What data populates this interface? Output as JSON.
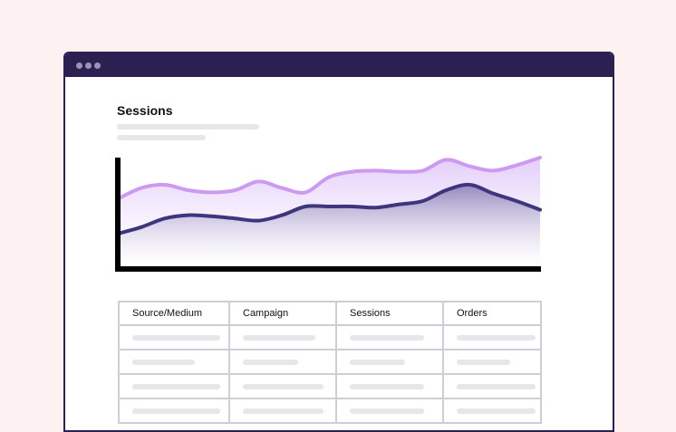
{
  "page": {
    "title": "Sessions"
  },
  "chart_data": {
    "type": "area",
    "title": "",
    "xlabel": "",
    "ylabel": "",
    "x": [
      0,
      1,
      2,
      3,
      4,
      5,
      6,
      7,
      8,
      9,
      10,
      11,
      12,
      13,
      14,
      15,
      16,
      17,
      18
    ],
    "ylim": [
      0,
      100
    ],
    "grid": false,
    "series": [
      {
        "values": [
          62,
          72,
          75,
          70,
          68,
          70,
          78,
          72,
          68,
          82,
          87,
          88,
          87,
          88,
          98,
          92,
          88,
          93,
          100
        ],
        "color": "#cc9af0",
        "fill": "#eadbfb"
      },
      {
        "values": [
          30,
          36,
          44,
          47,
          46,
          44,
          42,
          47,
          55,
          55,
          55,
          54,
          57,
          60,
          70,
          75,
          67,
          60,
          52
        ],
        "color": "#3d357e",
        "fill": "#a59ac2"
      }
    ]
  },
  "table": {
    "columns": [
      "Source/Medium",
      "Campaign",
      "Sessions",
      "Orders"
    ],
    "row_count": 4
  },
  "colors": {
    "background": "#fdf1f1",
    "titlebar": "#2c1f52",
    "accent_light": "#cc9af0",
    "accent_dark": "#3d357e",
    "placeholder": "#e7e7ea"
  }
}
